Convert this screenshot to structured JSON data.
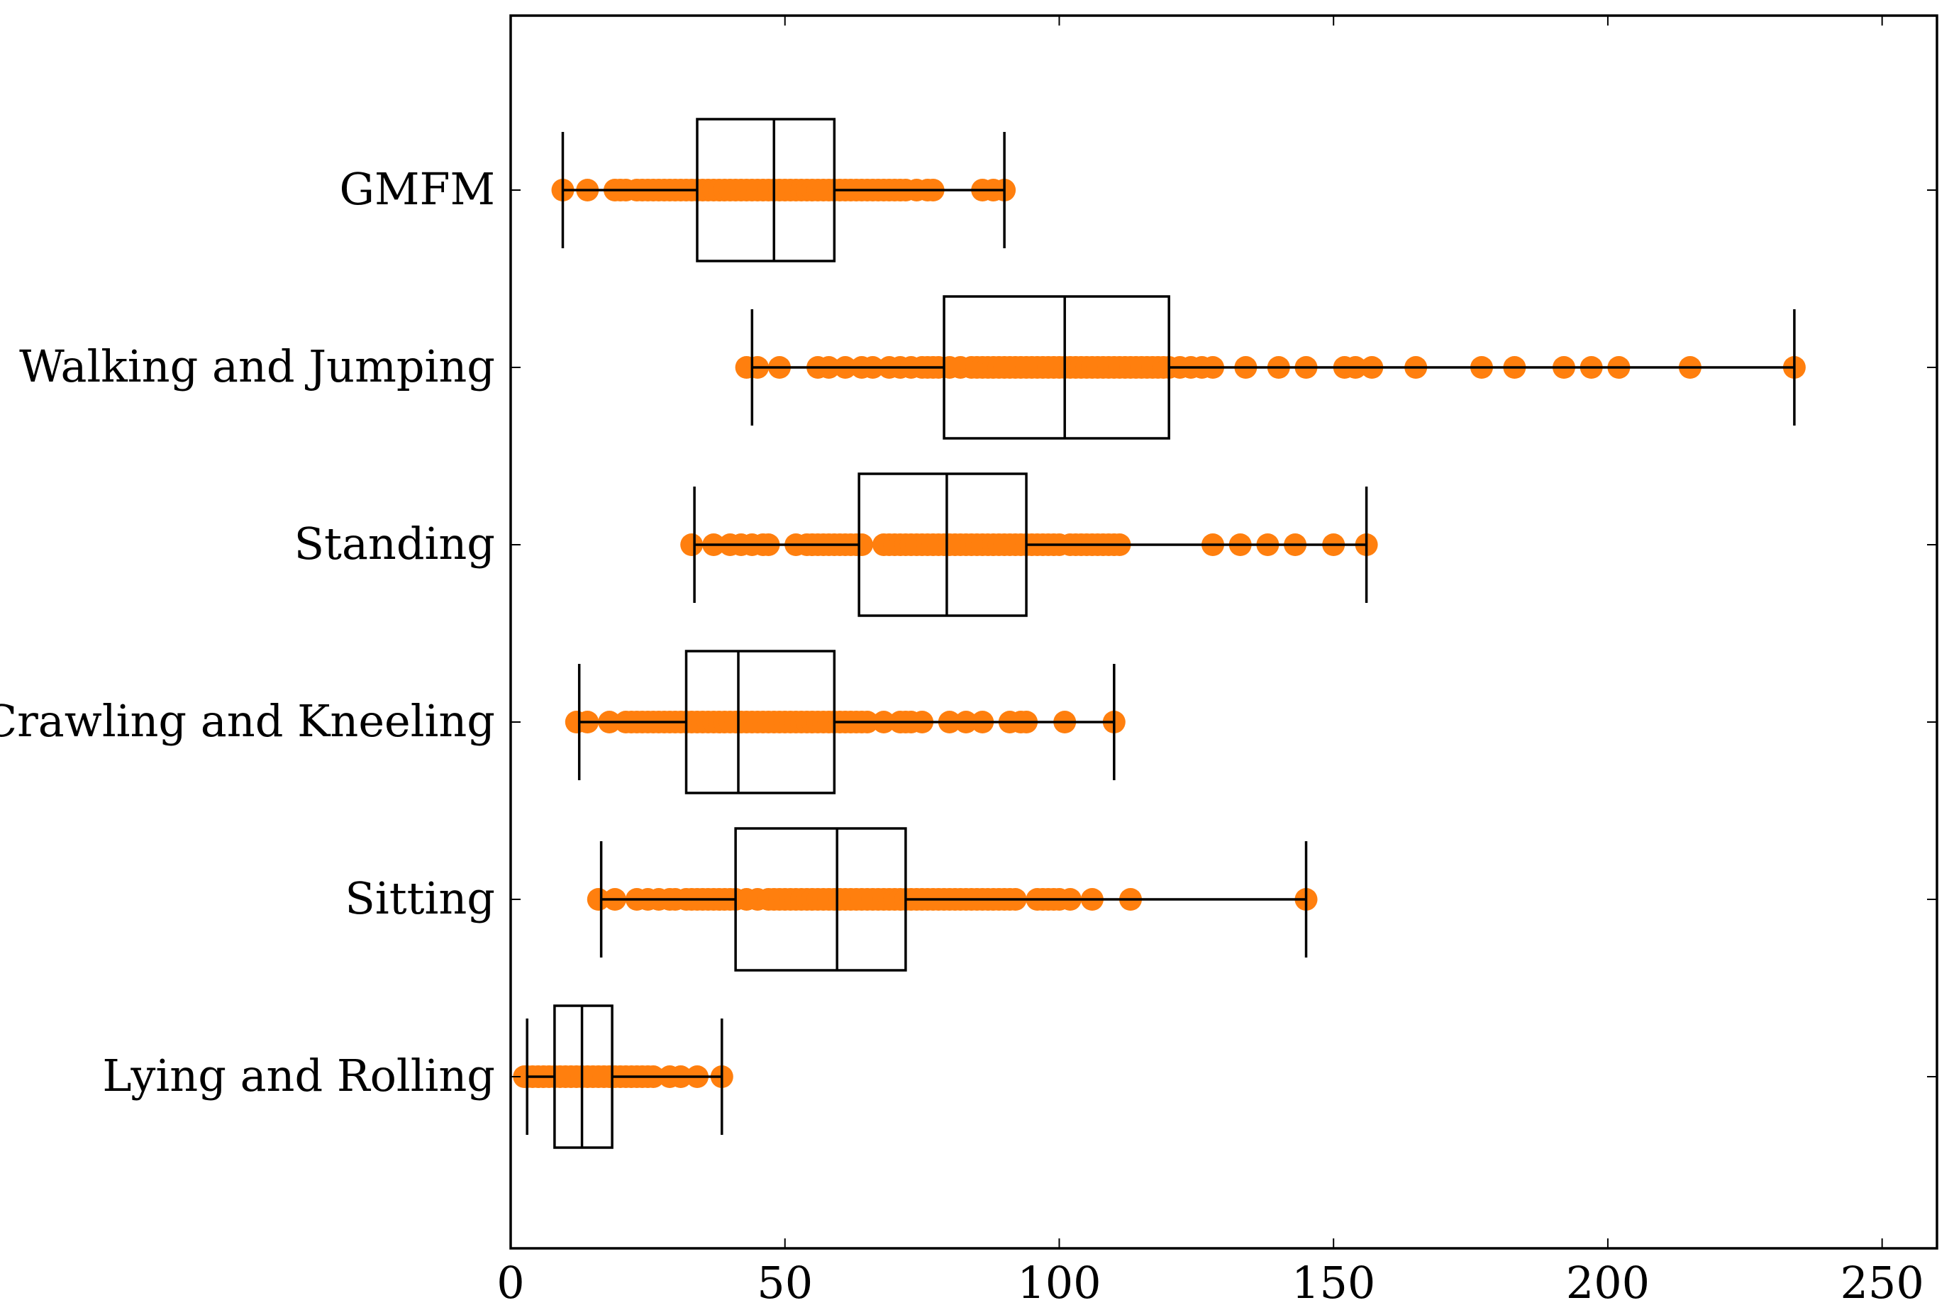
{
  "chart_data": {
    "type": "boxplot",
    "title": "",
    "xlabel": "",
    "ylabel": "",
    "xlim": [
      0,
      260
    ],
    "xticks": [
      0,
      50,
      100,
      150,
      200,
      250
    ],
    "xtick_labels": [
      "0",
      "50",
      "100",
      "150",
      "200",
      "250"
    ],
    "grid": false,
    "colors": {
      "points": "#ff7f0e",
      "box": "#000000",
      "axis": "#000000"
    },
    "categories": [
      "GMFM",
      "Walking and Jumping",
      "Standing",
      "Crawling and Kneeling",
      "Sitting",
      "Lying and Rolling"
    ],
    "series": [
      {
        "name": "GMFM",
        "whisker_low": 9.5,
        "q1": 34,
        "median": 48,
        "q3": 59,
        "whisker_high": 90,
        "points": [
          9.5,
          14,
          19,
          20,
          21,
          23,
          24,
          25,
          26,
          27,
          28,
          29,
          30,
          31,
          32,
          33,
          34,
          35,
          36,
          37,
          38,
          39,
          40,
          41,
          42,
          43,
          44,
          45,
          46,
          47,
          48,
          49,
          50,
          51,
          52,
          53,
          54,
          55,
          56,
          57,
          58,
          59,
          60,
          61,
          62,
          63,
          64,
          65,
          66,
          67,
          68,
          69,
          70,
          71,
          72,
          74,
          76,
          77,
          86,
          88,
          90
        ]
      },
      {
        "name": "Walking and Jumping",
        "whisker_low": 44,
        "q1": 79,
        "median": 101,
        "q3": 120,
        "whisker_high": 234,
        "points": [
          43,
          45,
          49,
          56,
          58,
          61,
          64,
          66,
          69,
          71,
          73,
          75,
          76,
          77,
          78,
          80,
          82,
          84,
          85,
          86,
          87,
          88,
          89,
          90,
          91,
          92,
          93,
          94,
          95,
          96,
          97,
          98,
          99,
          100,
          101,
          102,
          103,
          104,
          105,
          106,
          107,
          108,
          109,
          110,
          111,
          112,
          113,
          114,
          115,
          116,
          117,
          118,
          119,
          120,
          122,
          124,
          126,
          128,
          134,
          140,
          145,
          152,
          154,
          157,
          165,
          177,
          183,
          192,
          197,
          202,
          215,
          234
        ]
      },
      {
        "name": "Standing",
        "whisker_low": 33.5,
        "q1": 63.5,
        "median": 79.5,
        "q3": 94,
        "whisker_high": 156,
        "points": [
          33,
          37,
          40,
          42,
          44,
          46,
          47,
          52,
          54,
          55,
          56,
          57,
          58,
          59,
          60,
          61,
          62,
          63,
          64,
          68,
          69,
          70,
          71,
          72,
          73,
          74,
          75,
          76,
          77,
          78,
          79,
          80,
          81,
          82,
          83,
          84,
          85,
          86,
          87,
          88,
          89,
          90,
          91,
          92,
          93,
          94,
          95,
          96,
          97,
          98,
          99,
          100,
          102,
          103,
          104,
          105,
          106,
          107,
          108,
          109,
          110,
          111,
          128,
          133,
          138,
          143,
          150,
          156
        ]
      },
      {
        "name": "Crawling and Kneeling",
        "whisker_low": 12.5,
        "q1": 32,
        "median": 41.5,
        "q3": 59,
        "whisker_high": 110,
        "points": [
          12,
          14,
          18,
          21,
          22,
          23,
          24,
          25,
          26,
          27,
          28,
          29,
          30,
          31,
          32,
          33,
          34,
          35,
          36,
          37,
          38,
          39,
          40,
          41,
          42,
          43,
          44,
          45,
          46,
          47,
          48,
          49,
          50,
          51,
          52,
          53,
          54,
          55,
          56,
          57,
          58,
          59,
          60,
          61,
          62,
          63,
          64,
          65,
          68,
          71,
          72,
          73,
          75,
          80,
          83,
          86,
          91,
          93,
          94,
          101,
          110
        ]
      },
      {
        "name": "Sitting",
        "whisker_low": 16.5,
        "q1": 41,
        "median": 59.5,
        "q3": 72,
        "whisker_high": 145,
        "points": [
          16,
          19,
          23,
          25,
          27,
          29,
          30,
          32,
          33,
          34,
          35,
          36,
          37,
          38,
          39,
          40,
          41,
          43,
          45,
          47,
          48,
          49,
          50,
          51,
          52,
          53,
          54,
          55,
          56,
          57,
          58,
          59,
          60,
          61,
          62,
          63,
          64,
          65,
          66,
          67,
          68,
          69,
          70,
          71,
          72,
          73,
          74,
          75,
          76,
          77,
          78,
          79,
          80,
          81,
          82,
          83,
          84,
          85,
          86,
          87,
          88,
          89,
          90,
          91,
          92,
          96,
          97,
          98,
          99,
          100,
          102,
          106,
          113,
          145
        ]
      },
      {
        "name": "Lying and Rolling",
        "whisker_low": 3,
        "q1": 8,
        "median": 13,
        "q3": 18.5,
        "whisker_high": 38.5,
        "points": [
          2.5,
          3,
          4,
          5,
          6,
          7,
          8,
          9,
          10,
          11,
          12,
          13,
          14,
          15,
          16,
          17,
          18,
          19,
          20,
          21,
          22,
          23,
          24,
          25,
          26,
          29,
          31,
          34,
          38.5
        ]
      }
    ]
  }
}
